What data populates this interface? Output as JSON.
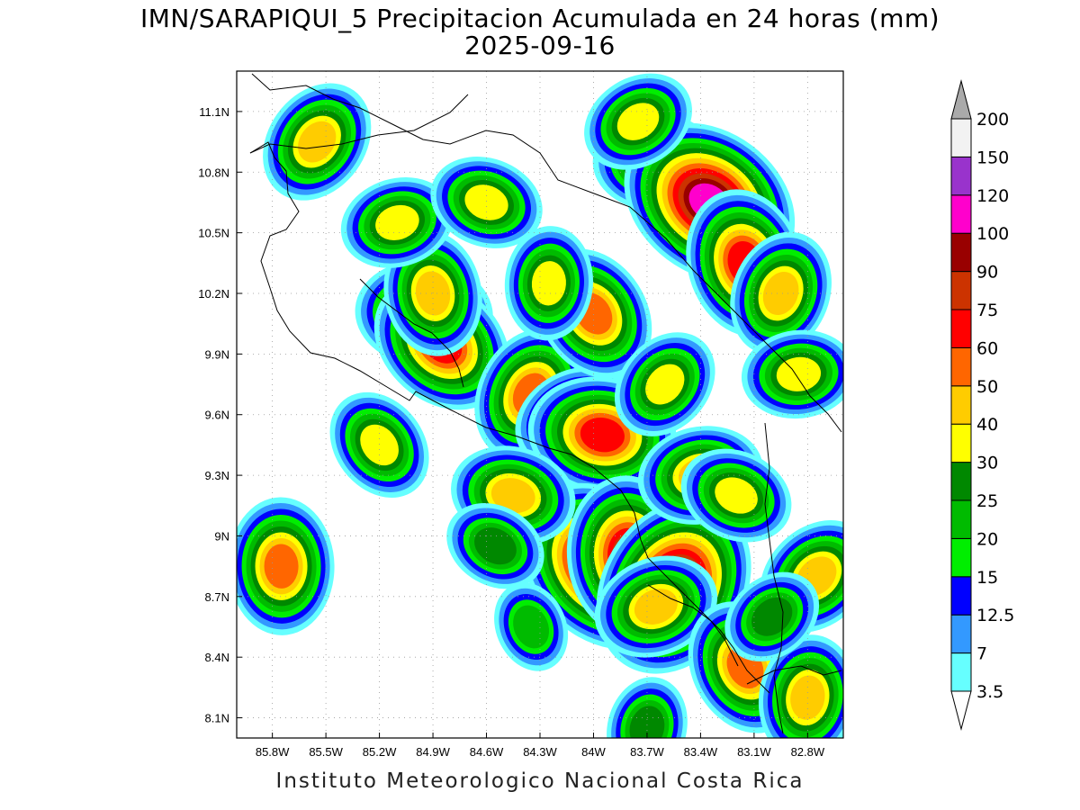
{
  "title": {
    "line1": "IMN/SARAPIQUI_5 Precipitacion Acumulada en 24 horas (mm)",
    "line2": "2025-09-16"
  },
  "footer": "Instituto Meteorologico Nacional Costa Rica",
  "map": {
    "lon_range": [
      -86.0,
      -82.6
    ],
    "lat_range": [
      8.0,
      11.3
    ],
    "lat_ticks": [
      "11.1N",
      "10.8N",
      "10.5N",
      "10.2N",
      "9.9N",
      "9.6N",
      "9.3N",
      "9N",
      "8.7N",
      "8.4N",
      "8.1N"
    ],
    "lat_tick_values": [
      11.1,
      10.8,
      10.5,
      10.2,
      9.9,
      9.6,
      9.3,
      9.0,
      8.7,
      8.4,
      8.1
    ],
    "lon_ticks": [
      "85.8W",
      "85.5W",
      "85.2W",
      "84.9W",
      "84.6W",
      "84.3W",
      "84W",
      "83.7W",
      "83.4W",
      "83.1W",
      "82.8W"
    ],
    "lon_tick_values": [
      -85.8,
      -85.5,
      -85.2,
      -84.9,
      -84.6,
      -84.3,
      -84.0,
      -83.7,
      -83.4,
      -83.1,
      -82.8
    ],
    "grid": "dotted"
  },
  "colorbar": {
    "labels": [
      "3.5",
      "7",
      "12.5",
      "15",
      "20",
      "25",
      "30",
      "40",
      "50",
      "60",
      "75",
      "90",
      "100",
      "120",
      "150",
      "200"
    ],
    "colors": [
      "#66ffff",
      "#3399ff",
      "#0000ff",
      "#00ee00",
      "#00bb00",
      "#008800",
      "#ffff00",
      "#ffcc00",
      "#ff6600",
      "#ff0000",
      "#cc3300",
      "#990000",
      "#ff00cc",
      "#9933cc",
      "#f2f2f2"
    ],
    "over_color": "#aaaaaa",
    "under_color": "#ffffff"
  },
  "precip_cells": [
    {
      "lon": -83.65,
      "lat": 10.85,
      "value": 40
    },
    {
      "lon": -83.35,
      "lat": 10.65,
      "value": 110
    },
    {
      "lon": -83.15,
      "lat": 10.35,
      "value": 65
    },
    {
      "lon": -82.95,
      "lat": 10.2,
      "value": 45
    },
    {
      "lon": -83.75,
      "lat": 11.05,
      "value": 35
    },
    {
      "lon": -84.95,
      "lat": 10.1,
      "value": 50
    },
    {
      "lon": -84.85,
      "lat": 9.95,
      "value": 60
    },
    {
      "lon": -84.9,
      "lat": 10.2,
      "value": 40
    },
    {
      "lon": -84.35,
      "lat": 9.7,
      "value": 50
    },
    {
      "lon": -84.1,
      "lat": 9.58,
      "value": 45
    },
    {
      "lon": -83.95,
      "lat": 9.5,
      "value": 60
    },
    {
      "lon": -83.95,
      "lat": 8.85,
      "value": 100
    },
    {
      "lon": -83.8,
      "lat": 8.9,
      "value": 75
    },
    {
      "lon": -83.55,
      "lat": 8.75,
      "value": 110
    },
    {
      "lon": -83.65,
      "lat": 8.65,
      "value": 40
    },
    {
      "lon": -84.45,
      "lat": 9.2,
      "value": 40
    },
    {
      "lon": -85.2,
      "lat": 9.45,
      "value": 35
    },
    {
      "lon": -85.75,
      "lat": 8.85,
      "value": 55
    },
    {
      "lon": -85.55,
      "lat": 10.95,
      "value": 40
    },
    {
      "lon": -85.1,
      "lat": 10.55,
      "value": 35
    },
    {
      "lon": -84.6,
      "lat": 10.65,
      "value": 35
    },
    {
      "lon": -84.0,
      "lat": 10.1,
      "value": 50
    },
    {
      "lon": -84.25,
      "lat": 10.25,
      "value": 35
    },
    {
      "lon": -83.6,
      "lat": 9.75,
      "value": 35
    },
    {
      "lon": -83.4,
      "lat": 9.3,
      "value": 40
    },
    {
      "lon": -83.2,
      "lat": 9.2,
      "value": 35
    },
    {
      "lon": -83.15,
      "lat": 8.35,
      "value": 55
    },
    {
      "lon": -82.8,
      "lat": 8.2,
      "value": 40
    },
    {
      "lon": -82.75,
      "lat": 8.8,
      "value": 40
    },
    {
      "lon": -82.85,
      "lat": 9.8,
      "value": 35
    },
    {
      "lon": -84.55,
      "lat": 8.95,
      "value": 25
    },
    {
      "lon": -84.35,
      "lat": 8.55,
      "value": 20
    },
    {
      "lon": -83.7,
      "lat": 8.05,
      "value": 25
    },
    {
      "lon": -83.0,
      "lat": 8.6,
      "value": 25
    }
  ]
}
